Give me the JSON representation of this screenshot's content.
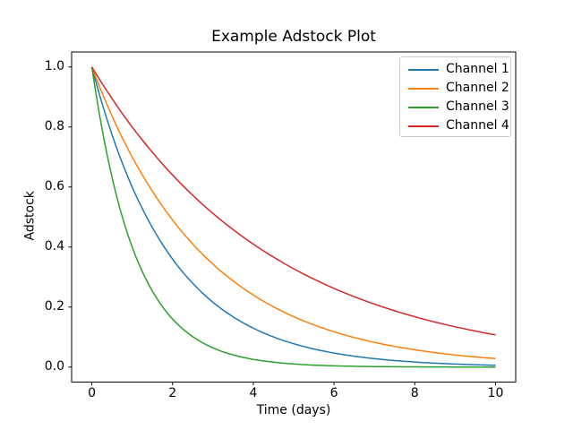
{
  "chart_data": {
    "type": "line",
    "title": "Example Adstock Plot",
    "xlabel": "Time (days)",
    "ylabel": "Adstock",
    "x_range": [
      0,
      10
    ],
    "xlim": [
      -0.5,
      10.5
    ],
    "ylim": [
      -0.05,
      1.05
    ],
    "xticks": [
      0,
      2,
      4,
      6,
      8,
      10
    ],
    "xticklabels": [
      "0",
      "2",
      "4",
      "6",
      "8",
      "10"
    ],
    "yticks": [
      0.0,
      0.2,
      0.4,
      0.6,
      0.8,
      1.0
    ],
    "yticklabels": [
      "0.0",
      "0.2",
      "0.4",
      "0.6",
      "0.8",
      "1.0"
    ],
    "grid": false,
    "legend_position": "upper right",
    "series": [
      {
        "name": "Channel 1",
        "color": "#1f77b4",
        "decay_rate": 0.6,
        "x_integer_days": [
          0,
          1,
          2,
          3,
          4,
          5,
          6,
          7,
          8,
          9,
          10
        ],
        "values": [
          1.0,
          0.6,
          0.36,
          0.216,
          0.1296,
          0.0778,
          0.0467,
          0.028,
          0.0168,
          0.0101,
          0.006
        ]
      },
      {
        "name": "Channel 2",
        "color": "#ff7f0e",
        "decay_rate": 0.7,
        "x_integer_days": [
          0,
          1,
          2,
          3,
          4,
          5,
          6,
          7,
          8,
          9,
          10
        ],
        "values": [
          1.0,
          0.7,
          0.49,
          0.343,
          0.2401,
          0.1681,
          0.1176,
          0.0824,
          0.0576,
          0.0404,
          0.0282
        ]
      },
      {
        "name": "Channel 3",
        "color": "#2ca02c",
        "decay_rate": 0.4,
        "x_integer_days": [
          0,
          1,
          2,
          3,
          4,
          5,
          6,
          7,
          8,
          9,
          10
        ],
        "values": [
          1.0,
          0.4,
          0.16,
          0.064,
          0.0256,
          0.0102,
          0.0041,
          0.0016,
          0.0007,
          0.0003,
          0.0001
        ]
      },
      {
        "name": "Channel 4",
        "color": "#d62728",
        "decay_rate": 0.8,
        "x_integer_days": [
          0,
          1,
          2,
          3,
          4,
          5,
          6,
          7,
          8,
          9,
          10
        ],
        "values": [
          1.0,
          0.8,
          0.64,
          0.512,
          0.4096,
          0.3277,
          0.2621,
          0.2097,
          0.1678,
          0.1342,
          0.1074
        ]
      }
    ],
    "style": {
      "axes_frame_color": "#000000",
      "background": "#ffffff",
      "legend_border_color": "#cbcbcb",
      "line_width": 1.5
    }
  }
}
